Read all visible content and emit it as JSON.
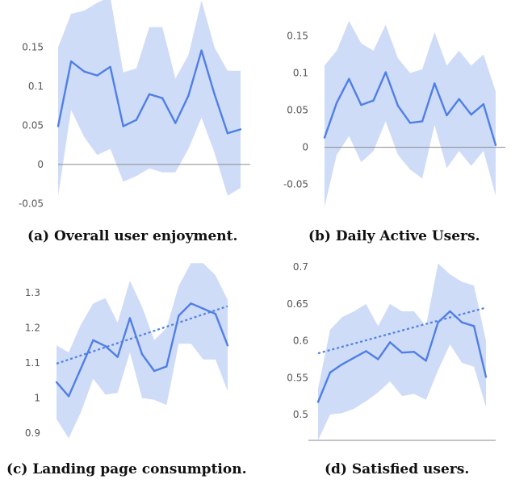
{
  "colors": {
    "line": "#4f7fe6",
    "band": "#c7d6f7",
    "zero_line": "#8a8a8a",
    "axis": "#999999"
  },
  "chart_data": [
    {
      "type": "line",
      "caption": "(a) Overall user enjoyment.",
      "ylim": [
        -0.06,
        0.19
      ],
      "y_ticks": [
        -0.05,
        0,
        0.05,
        0.1,
        0.15
      ],
      "y_tick_labels": [
        "-0.05",
        "0",
        "0.05",
        "0.1",
        "0.15"
      ],
      "zero_line": true,
      "baseline": false,
      "x": [
        1,
        2,
        3,
        4,
        5,
        6,
        7,
        8,
        9,
        10,
        11,
        12,
        13,
        14,
        15
      ],
      "series": [
        {
          "values": [
            0.049,
            0.132,
            0.119,
            0.114,
            0.125,
            0.049,
            0.057,
            0.09,
            0.085,
            0.053,
            0.088,
            0.146,
            0.09,
            0.04,
            0.045
          ]
        }
      ],
      "band_upper": [
        0.15,
        0.193,
        0.197,
        0.207,
        0.215,
        0.118,
        0.123,
        0.176,
        0.176,
        0.11,
        0.14,
        0.21,
        0.15,
        0.12,
        0.12
      ],
      "band_lower": [
        -0.04,
        0.07,
        0.035,
        0.012,
        0.02,
        -0.022,
        -0.015,
        -0.005,
        -0.01,
        -0.01,
        0.02,
        0.06,
        0.015,
        -0.04,
        -0.03
      ]
    },
    {
      "type": "line",
      "caption": "(b) Daily Active Users.",
      "ylim": [
        -0.085,
        0.17
      ],
      "y_ticks": [
        -0.05,
        0,
        0.05,
        0.1,
        0.15
      ],
      "y_tick_labels": [
        "-0.05",
        "0",
        "0.05",
        "0.1",
        "0.15"
      ],
      "zero_line": true,
      "baseline": false,
      "x": [
        1,
        2,
        3,
        4,
        5,
        6,
        7,
        8,
        9,
        10,
        11,
        12,
        13,
        14,
        15
      ],
      "series": [
        {
          "values": [
            0.013,
            0.06,
            0.092,
            0.057,
            0.063,
            0.101,
            0.056,
            0.033,
            0.035,
            0.086,
            0.043,
            0.065,
            0.044,
            0.058,
            0.003
          ]
        }
      ],
      "band_upper": [
        0.11,
        0.13,
        0.17,
        0.14,
        0.13,
        0.165,
        0.12,
        0.1,
        0.105,
        0.155,
        0.11,
        0.13,
        0.11,
        0.125,
        0.075
      ],
      "band_lower": [
        -0.08,
        -0.01,
        0.015,
        -0.02,
        -0.005,
        0.035,
        -0.01,
        -0.03,
        -0.042,
        0.03,
        -0.028,
        -0.005,
        -0.025,
        -0.005,
        -0.065
      ]
    },
    {
      "type": "line",
      "caption": "(c) Landing page consumption.",
      "ylim": [
        0.87,
        1.39
      ],
      "y_ticks": [
        0.9,
        1,
        1.1,
        1.2,
        1.3
      ],
      "y_tick_labels": [
        "0.9",
        "1",
        "1.1",
        "1.2",
        "1.3"
      ],
      "zero_line": false,
      "baseline": false,
      "x": [
        1,
        2,
        3,
        4,
        5,
        6,
        7,
        8,
        9,
        10,
        11,
        12,
        13,
        14,
        15
      ],
      "series": [
        {
          "values": [
            1.045,
            1.005,
            1.085,
            1.165,
            1.148,
            1.117,
            1.228,
            1.125,
            1.077,
            1.09,
            1.235,
            1.27,
            1.255,
            1.24,
            1.15
          ]
        }
      ],
      "trend": [
        1.098,
        1.262
      ],
      "band_upper": [
        1.15,
        1.13,
        1.21,
        1.27,
        1.285,
        1.215,
        1.335,
        1.26,
        1.165,
        1.2,
        1.32,
        1.385,
        1.385,
        1.35,
        1.28
      ],
      "band_lower": [
        0.94,
        0.885,
        0.96,
        1.055,
        1.01,
        1.015,
        1.13,
        1.0,
        0.995,
        0.98,
        1.155,
        1.155,
        1.11,
        1.11,
        1.02
      ]
    },
    {
      "type": "line",
      "caption": "(d) Satisfied users.",
      "ylim": [
        0.465,
        0.71
      ],
      "y_ticks": [
        0.5,
        0.55,
        0.6,
        0.65,
        0.7
      ],
      "y_tick_labels": [
        "0.5",
        "0.55",
        "0.6",
        "0.65",
        "0.7"
      ],
      "zero_line": false,
      "baseline": true,
      "x": [
        1,
        2,
        3,
        4,
        5,
        6,
        7,
        8,
        9,
        10,
        11,
        12,
        13,
        14,
        15
      ],
      "series": [
        {
          "values": [
            0.517,
            0.557,
            0.568,
            0.577,
            0.586,
            0.575,
            0.598,
            0.584,
            0.585,
            0.573,
            0.625,
            0.64,
            0.625,
            0.62,
            0.551
          ]
        }
      ],
      "trend": [
        0.583,
        0.645
      ],
      "band_upper": [
        0.535,
        0.615,
        0.632,
        0.64,
        0.65,
        0.62,
        0.65,
        0.64,
        0.64,
        0.62,
        0.705,
        0.69,
        0.68,
        0.675,
        0.6
      ],
      "band_lower": [
        0.465,
        0.5,
        0.502,
        0.508,
        0.518,
        0.53,
        0.545,
        0.525,
        0.528,
        0.52,
        0.56,
        0.595,
        0.57,
        0.565,
        0.51
      ]
    }
  ]
}
